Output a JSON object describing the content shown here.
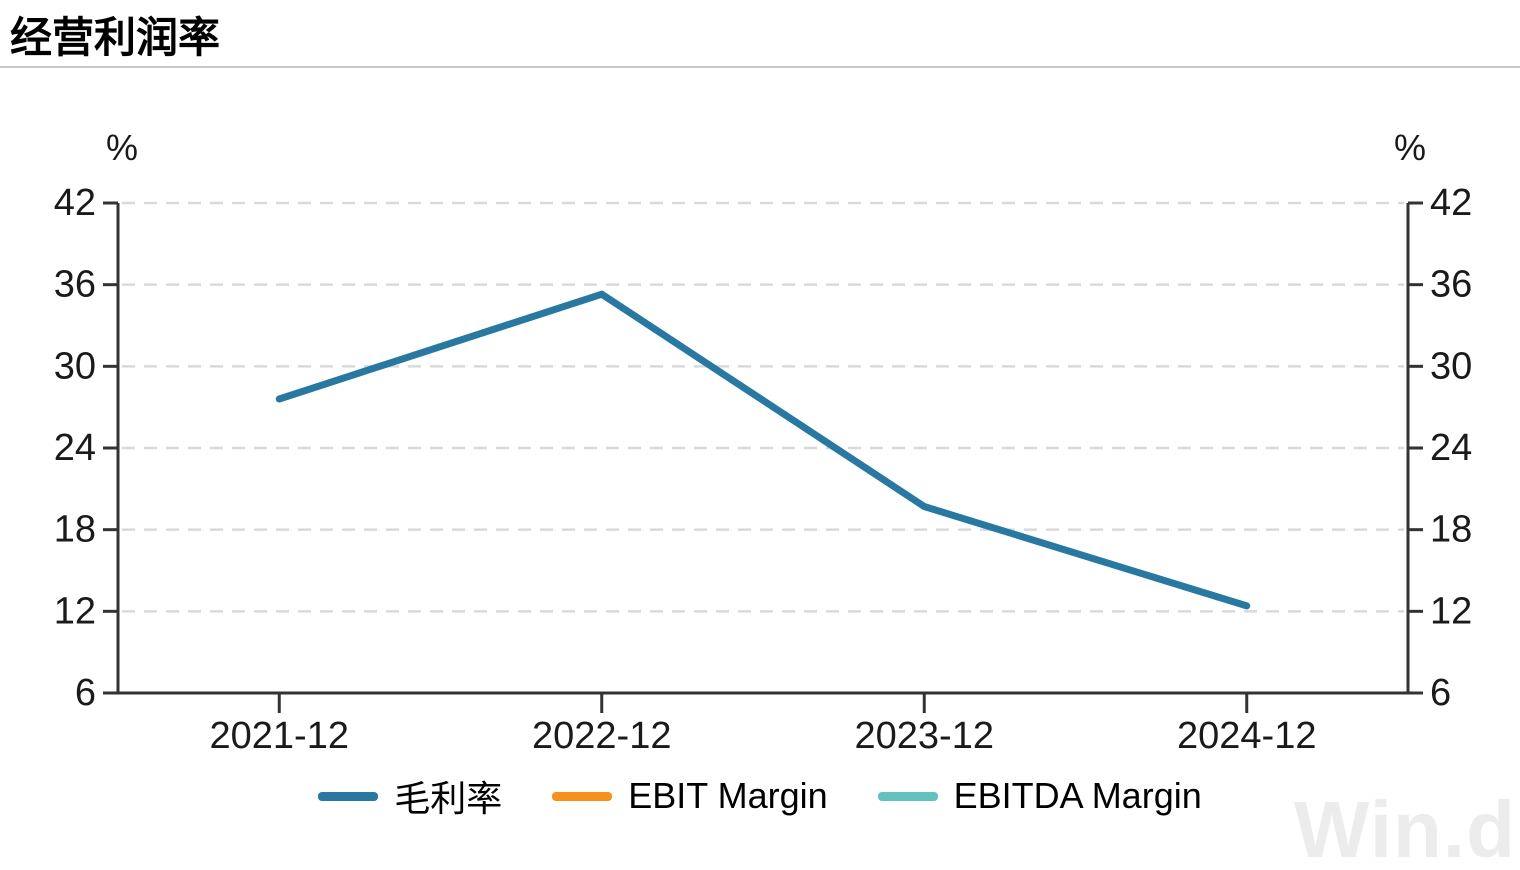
{
  "header": {
    "title": "经营利润率"
  },
  "watermark": {
    "text": "Win.d"
  },
  "chart_data": {
    "type": "line",
    "title": "经营利润率",
    "categories": [
      "2021-12",
      "2022-12",
      "2023-12",
      "2024-12"
    ],
    "series": [
      {
        "name": "毛利率",
        "color": "#2878a2",
        "values": [
          27.6,
          35.3,
          19.7,
          12.4
        ]
      },
      {
        "name": "EBIT Margin",
        "color": "#f5921e",
        "values": []
      },
      {
        "name": "EBITDA Margin",
        "color": "#63c1c0",
        "values": []
      }
    ],
    "ylim": [
      6,
      42
    ],
    "ystep": 6,
    "yticks": [
      6,
      12,
      18,
      24,
      30,
      36,
      42
    ],
    "y_unit_left": "%",
    "y_unit_right": "%",
    "grid": "dashed-horizontal",
    "legend_position": "bottom",
    "colors": {
      "axis": "#333333",
      "grid": "#d9d9d9",
      "tick_text": "#1a1a1a",
      "divider": "#c9c9c9",
      "watermark": "#ececec"
    }
  }
}
